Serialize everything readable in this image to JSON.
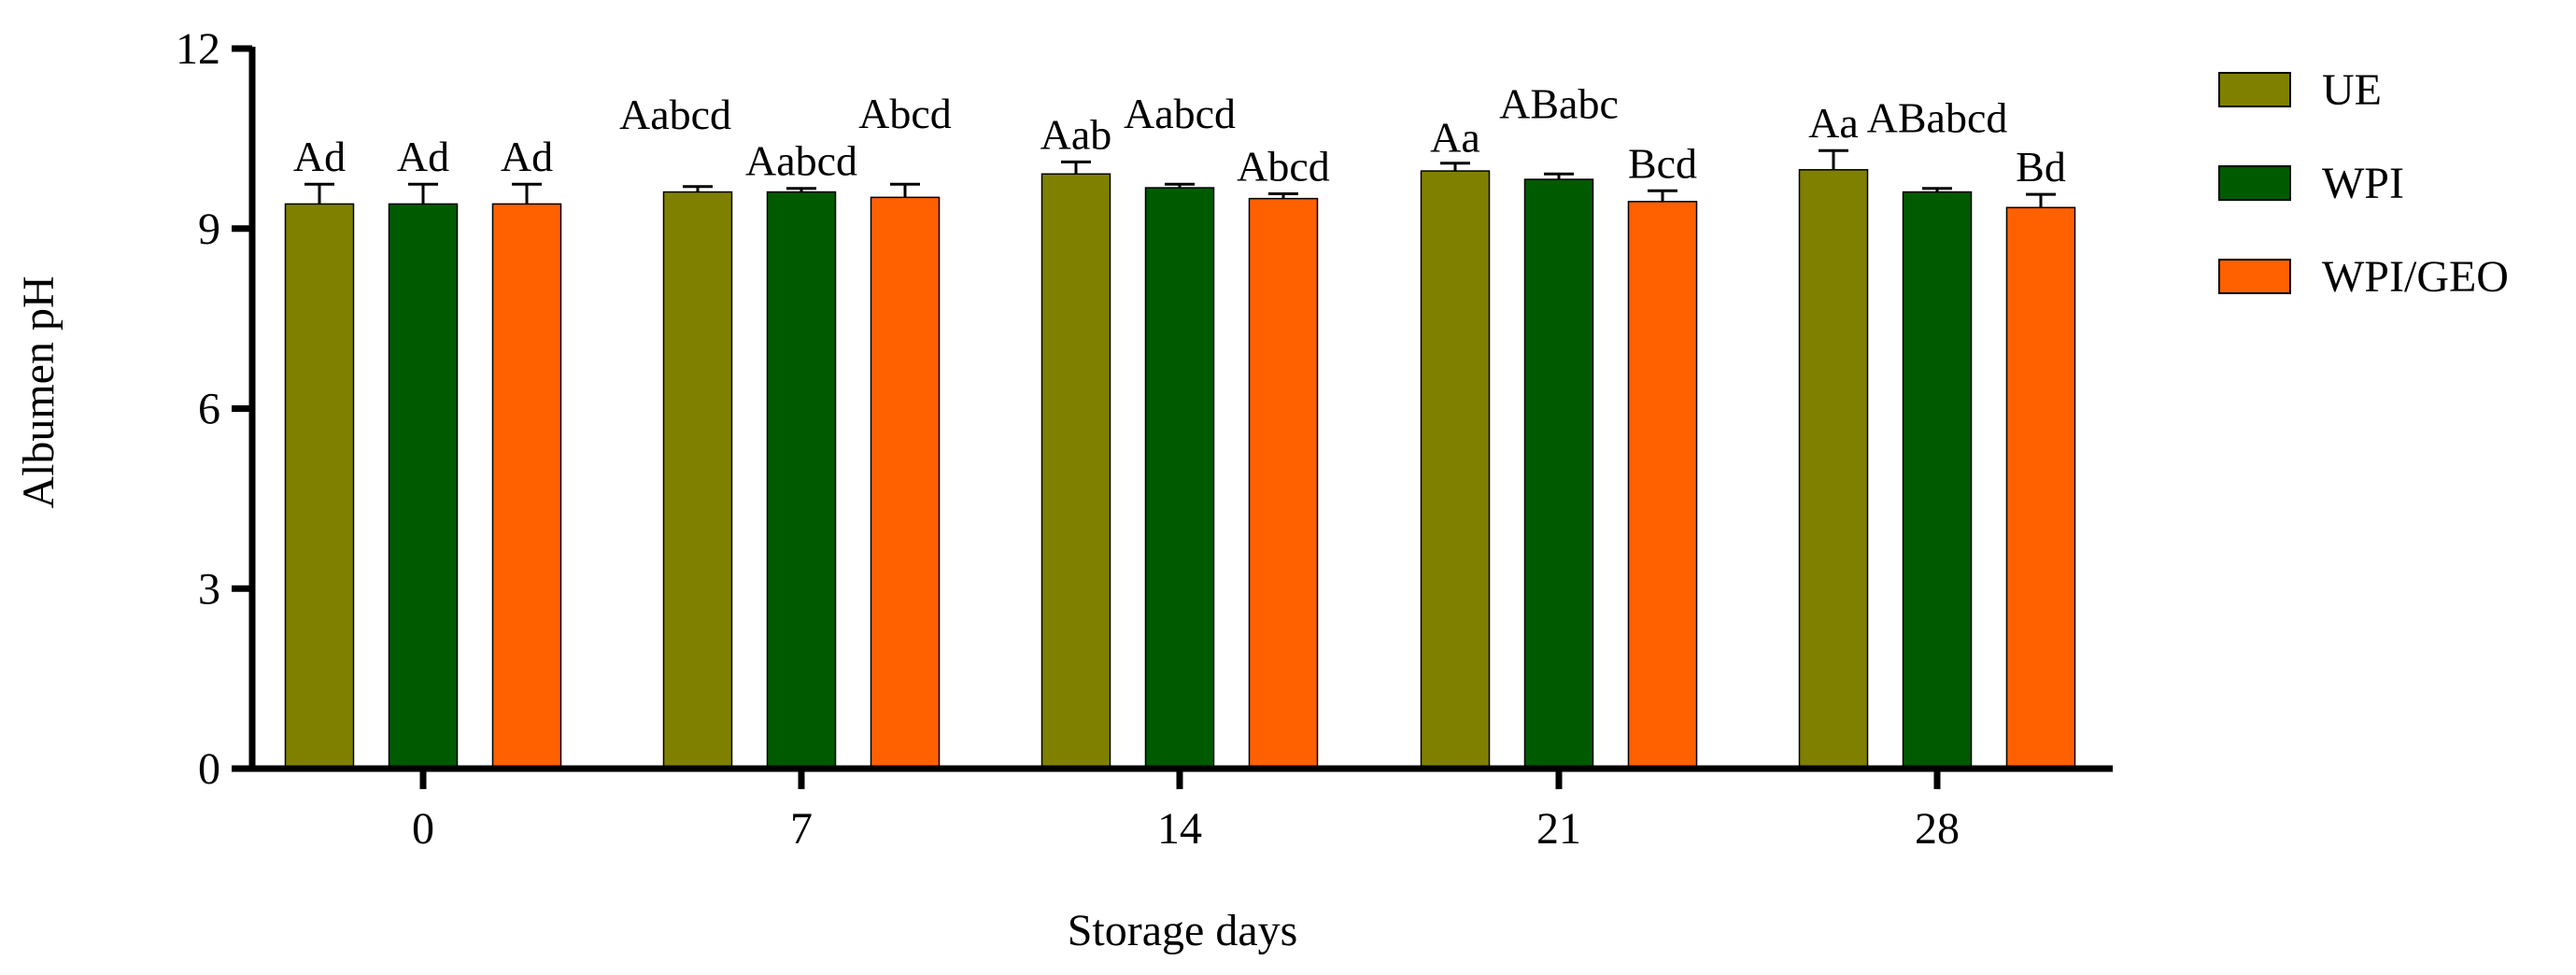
{
  "chart_data": {
    "type": "bar",
    "xlabel": "Storage days",
    "ylabel": "Albumen pH",
    "categories": [
      "0",
      "7",
      "14",
      "21",
      "28"
    ],
    "ylim": [
      0,
      12
    ],
    "yticks": [
      "0",
      "3",
      "6",
      "9",
      "12"
    ],
    "grid": false,
    "legend_position": "right",
    "series": [
      {
        "name": "UE",
        "color": "#808000",
        "values": [
          9.41,
          9.61,
          9.91,
          9.96,
          9.98
        ],
        "errors": [
          0.33,
          0.09,
          0.2,
          0.13,
          0.32
        ],
        "labels": [
          "Ad",
          "Aabcd",
          "Aab",
          "Aa",
          "Aa"
        ]
      },
      {
        "name": "WPI",
        "color": "#005a00",
        "values": [
          9.41,
          9.61,
          9.68,
          9.82,
          9.61
        ],
        "errors": [
          0.33,
          0.06,
          0.06,
          0.09,
          0.06
        ],
        "labels": [
          "Ad",
          "Aabcd",
          "Aabcd",
          "ABabc",
          "ABabcd"
        ]
      },
      {
        "name": "WPI/GEO",
        "color": "#ff6000",
        "values": [
          9.41,
          9.52,
          9.5,
          9.45,
          9.35
        ],
        "errors": [
          0.33,
          0.22,
          0.08,
          0.18,
          0.22
        ],
        "labels": [
          "Ad",
          "Abcd",
          "Abcd",
          "Bcd",
          "Bd"
        ]
      }
    ]
  }
}
